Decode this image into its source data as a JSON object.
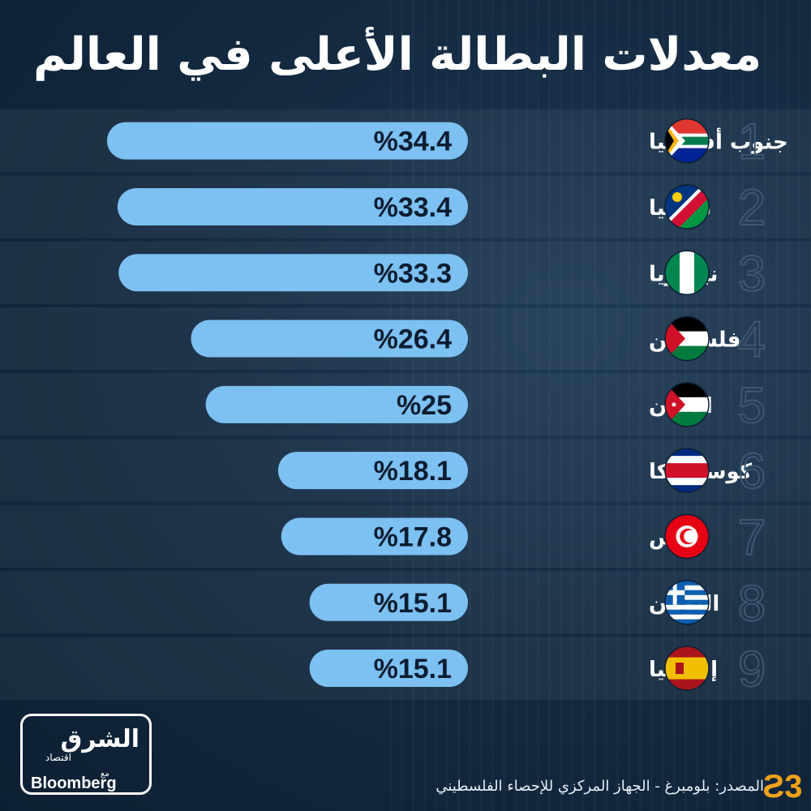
{
  "title": "معدلات البطالة الأعلى في العالم",
  "chart_data": {
    "type": "bar",
    "orientation": "horizontal",
    "direction": "right-to-left",
    "title": "معدلات البطالة الأعلى في العالم",
    "ranks": [
      "1",
      "2",
      "3",
      "4",
      "5",
      "6",
      "7",
      "8",
      "9"
    ],
    "categories": [
      "جنوب أفريقيا",
      "ناميبيا",
      "نيجيريا",
      "فلسطين",
      "الأردن",
      "كوستاريكا",
      "تونس",
      "اليونان",
      "إسبانيا"
    ],
    "values": [
      34.4,
      33.4,
      33.3,
      26.4,
      25,
      18.1,
      17.8,
      15.1,
      15.1
    ],
    "value_labels": [
      "%34.4",
      "%33.4",
      "%33.3",
      "%26.4",
      "%25",
      "%18.1",
      "%17.8",
      "%15.1",
      "%15.1"
    ],
    "flag_icons": [
      "south-africa-flag-icon",
      "namibia-flag-icon",
      "nigeria-flag-icon",
      "palestine-flag-icon",
      "jordan-flag-icon",
      "costa-rica-flag-icon",
      "tunisia-flag-icon",
      "greece-flag-icon",
      "spain-flag-icon"
    ],
    "bar_color": "#7dc0f2",
    "xlim": [
      0,
      50
    ],
    "grid": false,
    "legend": "none"
  },
  "source": "المصدر: بلومبرغ - الجهاز المركزي للإحصاء الفلسطيني",
  "logo": {
    "main": "الشرق",
    "sub": "اقتصاد",
    "with": "مع",
    "partner": "Bloomberg"
  },
  "colors": {
    "background": "#142b42",
    "bar": "#7dc0f2",
    "value_text": "#0b1d30"
  }
}
